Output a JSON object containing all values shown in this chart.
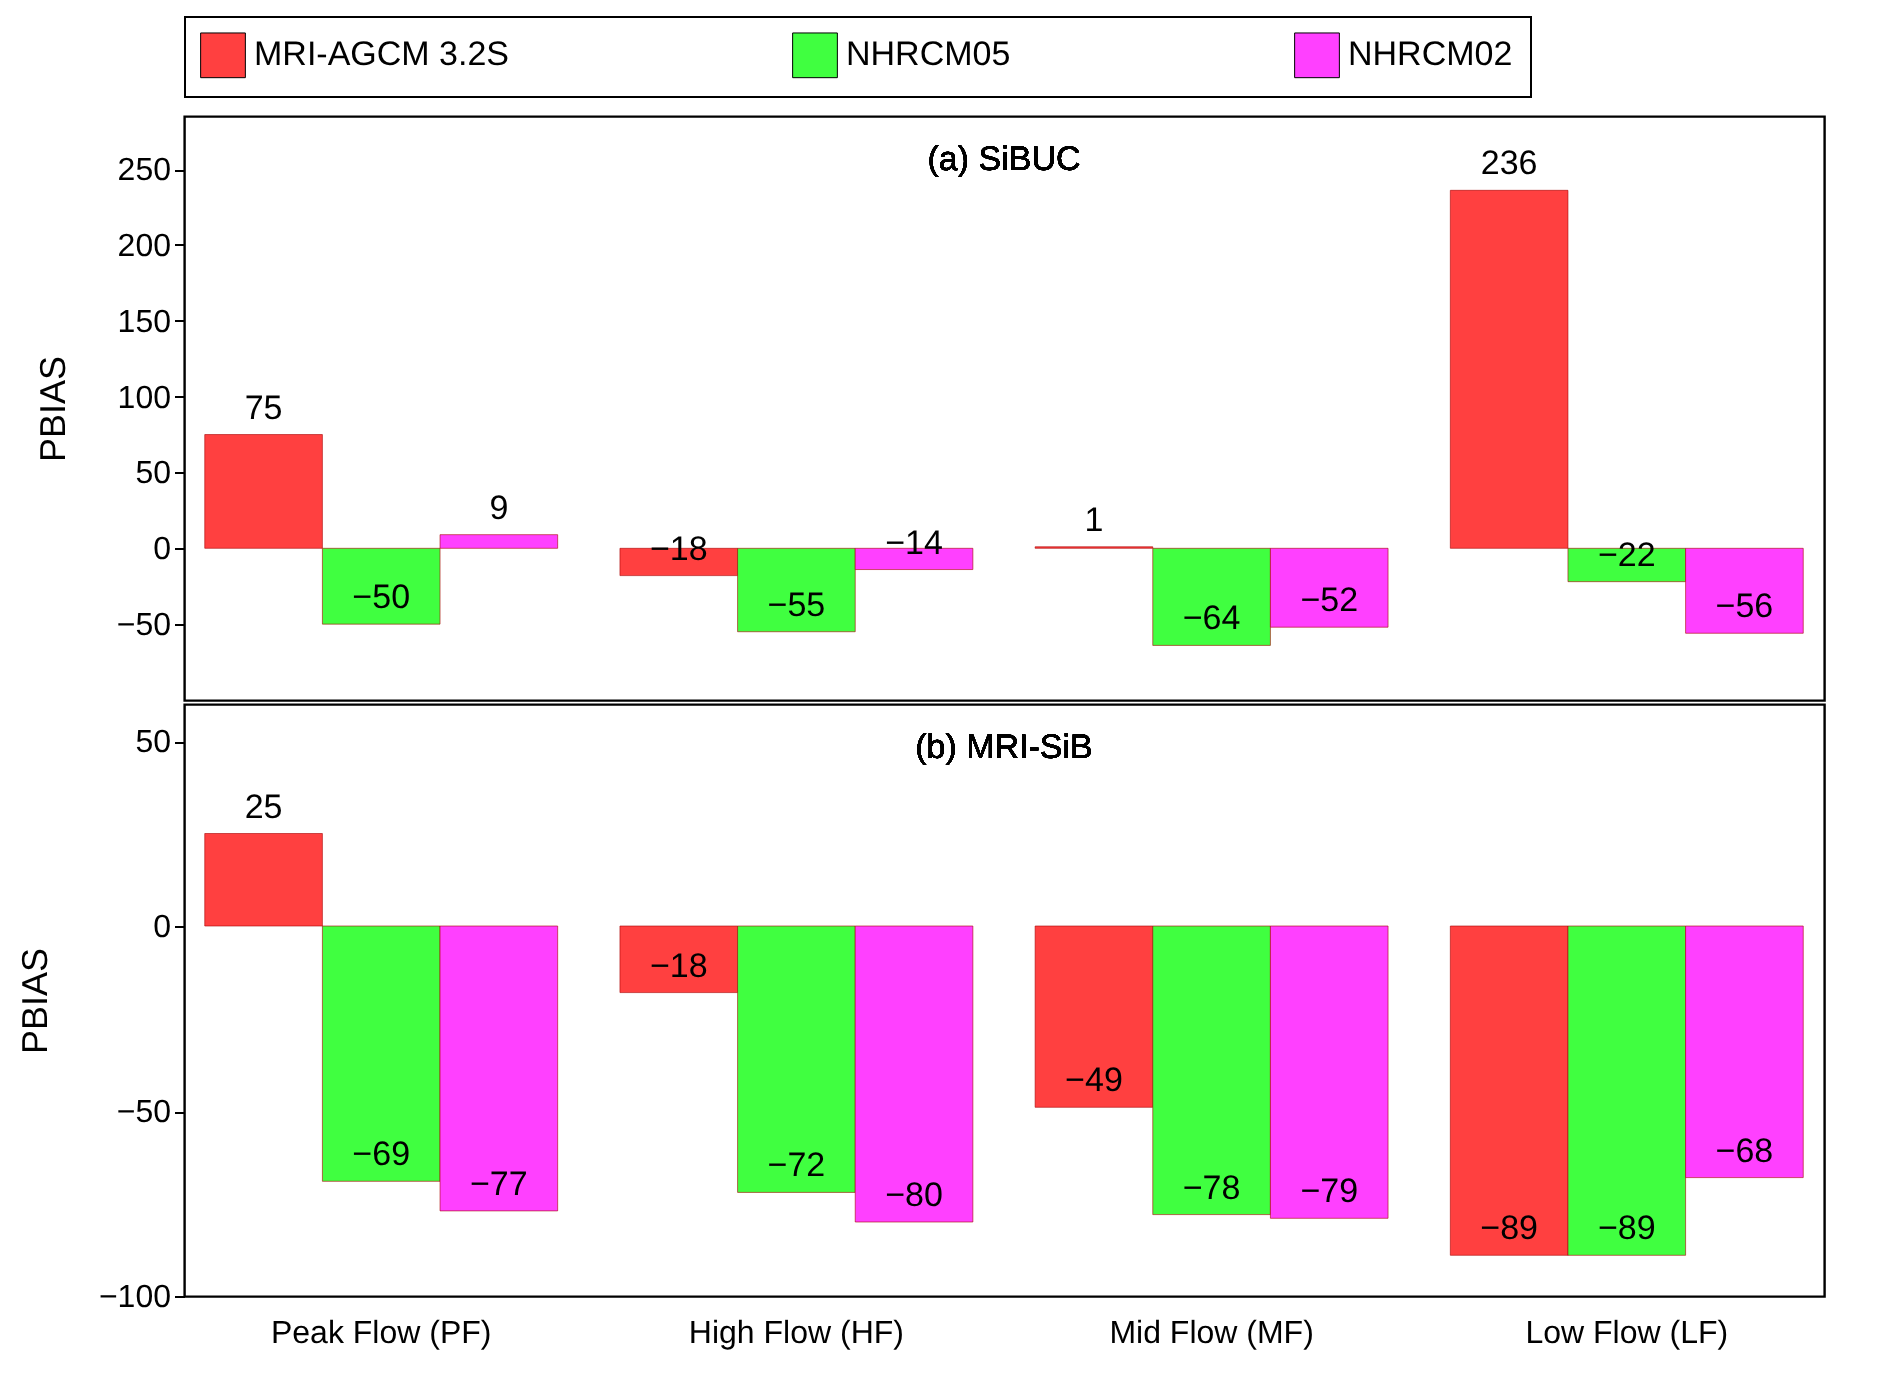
{
  "chart_data": [
    {
      "type": "bar",
      "title": "(a) SiBUC",
      "ylabel": "PBIAS",
      "categories": [
        "Peak Flow (PF)",
        "High Flow (HF)",
        "Mid Flow (MF)",
        "Low Flow (LF)"
      ],
      "series": [
        {
          "name": "MRI-AGCM 3.2S",
          "color": "#ff4040",
          "values": [
            75,
            -18,
            1,
            236
          ]
        },
        {
          "name": "NHRCM05",
          "color": "#40ff40",
          "values": [
            -50,
            -55,
            -64,
            -22
          ]
        },
        {
          "name": "NHRCM02",
          "color": "#ff40ff",
          "values": [
            9,
            -14,
            -52,
            -56
          ]
        }
      ],
      "ylim": [
        -100,
        285
      ],
      "yticks": [
        -50,
        0,
        50,
        100,
        150,
        200,
        250
      ],
      "data_labels": true,
      "legend": "top",
      "tick_labels": "y"
    },
    {
      "type": "bar",
      "title": "(b) MRI-SiB",
      "ylabel": "PBIAS",
      "categories": [
        "Peak Flow (PF)",
        "High Flow (HF)",
        "Mid Flow (MF)",
        "Low Flow (LF)"
      ],
      "series": [
        {
          "name": "MRI-AGCM 3.2S",
          "color": "#ff4040",
          "values": [
            25,
            -18,
            -49,
            -89
          ]
        },
        {
          "name": "NHRCM05",
          "color": "#40ff40",
          "values": [
            -69,
            -72,
            -78,
            -89
          ]
        },
        {
          "name": "NHRCM02",
          "color": "#ff40ff",
          "values": [
            -77,
            -80,
            -79,
            -68
          ]
        }
      ],
      "ylim": [
        -100,
        60
      ],
      "yticks": [
        -100,
        -50,
        0,
        50
      ],
      "data_labels": true
    }
  ]
}
